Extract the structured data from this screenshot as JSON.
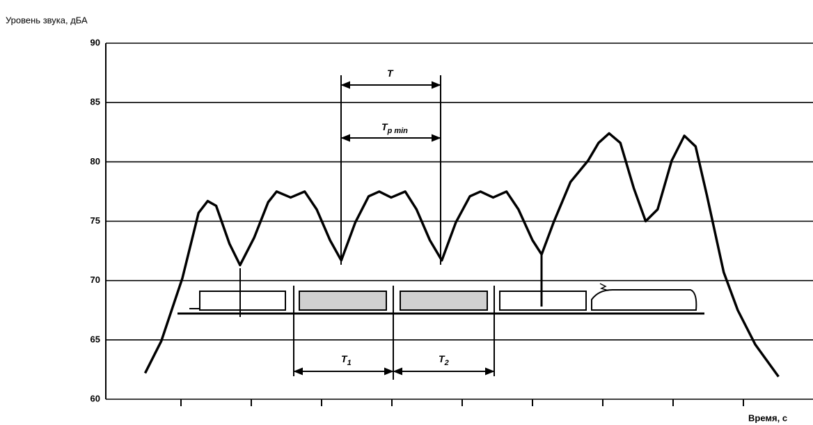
{
  "chart_data": {
    "type": "line",
    "y_label": "Уровень звука, дБА",
    "x_label": "Время, с",
    "ylim": [
      60,
      90
    ],
    "yticks": [
      60,
      65,
      70,
      75,
      80,
      85,
      90
    ],
    "xlim": [
      0,
      9.99
    ],
    "xticks": [
      1,
      2,
      3,
      4,
      5,
      6,
      7,
      8,
      9
    ],
    "grid": true,
    "color": "#000000",
    "x": [
      0.49,
      0.72,
      1.02,
      1.25,
      1.38,
      1.5,
      1.69,
      1.84,
      2.04,
      2.24,
      2.36,
      2.56,
      2.76,
      2.93,
      3.12,
      3.28,
      3.48,
      3.67,
      3.82,
      3.99,
      4.19,
      4.35,
      4.54,
      4.71,
      4.91,
      5.11,
      5.26,
      5.44,
      5.63,
      5.8,
      6.0,
      6.13,
      6.3,
      6.54,
      6.79,
      6.94,
      7.09,
      7.25,
      7.44,
      7.61,
      7.78,
      7.98,
      8.16,
      8.32,
      8.48,
      8.72,
      8.92,
      9.17,
      9.5
    ],
    "values": [
      62.2,
      64.9,
      70.2,
      75.7,
      76.7,
      76.3,
      73.1,
      71.3,
      73.6,
      76.6,
      77.5,
      77.0,
      77.5,
      76.0,
      73.4,
      71.7,
      74.9,
      77.1,
      77.5,
      77.0,
      77.5,
      76.0,
      73.4,
      71.7,
      74.9,
      77.1,
      77.5,
      77.0,
      77.5,
      76.0,
      73.4,
      72.2,
      74.9,
      78.3,
      80.1,
      81.6,
      82.4,
      81.6,
      77.8,
      75.0,
      76.0,
      80.1,
      82.2,
      81.3,
      77.2,
      70.7,
      67.5,
      64.6,
      61.9
    ],
    "annotations": [
      {
        "text": "T",
        "sub": ""
      },
      {
        "text": "T",
        "sub": "p min"
      },
      {
        "text": "T",
        "sub": "1"
      },
      {
        "text": "T",
        "sub": "2"
      }
    ]
  }
}
